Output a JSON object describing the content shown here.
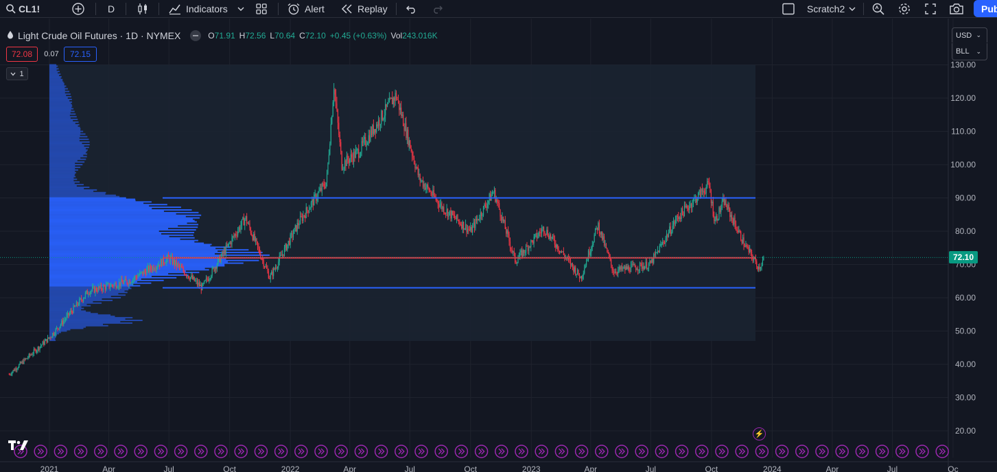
{
  "toolbar": {
    "symbol": "CL1!",
    "interval": "D",
    "indicators_label": "Indicators",
    "alert_label": "Alert",
    "replay_label": "Replay",
    "layout_name": "Scratch2",
    "publish_label": "Pub"
  },
  "legend": {
    "title": "Light Crude Oil Futures · 1D · NYMEX",
    "open_key": "O",
    "open": "71.91",
    "high_key": "H",
    "high": "72.56",
    "low_key": "L",
    "low": "70.64",
    "close_key": "C",
    "close": "72.10",
    "change": "+0.45 (+0.63%)",
    "vol_key": "Vol",
    "volume": "243.016K"
  },
  "trade": {
    "bid": "72.08",
    "spread": "0.07",
    "ask": "72.15"
  },
  "panel": {
    "collapse_count": "1"
  },
  "price_scale": {
    "currency": "USD",
    "unit": "BLL",
    "last_price": "72.10",
    "ticks": [
      "130.00",
      "120.00",
      "110.00",
      "100.00",
      "90.00",
      "80.00",
      "70.00",
      "60.00",
      "50.00",
      "40.00",
      "30.00",
      "20.00"
    ]
  },
  "time_scale": {
    "ticks": [
      "2021",
      "Apr",
      "Jul",
      "Oct",
      "2022",
      "Apr",
      "Jul",
      "Oct",
      "2023",
      "Apr",
      "Jul",
      "Oct",
      "2024",
      "Apr",
      "Jul",
      "Oc"
    ]
  },
  "colors": {
    "background": "#131722",
    "up": "#22ab94",
    "down": "#f23645",
    "volume_profile": "#2962ff",
    "value_area_line": "#2962ff",
    "poc_line": "#f23645",
    "last_price": "#089981",
    "event_marker": "#9c27b0"
  },
  "chart_data": {
    "type": "candlestick",
    "symbol": "CL1!",
    "interval": "1D",
    "ylim": [
      17,
      132
    ],
    "horizontal_lines": [
      {
        "price": 90.0,
        "color": "#2962ff"
      },
      {
        "price": 72.0,
        "color": "#f23645"
      },
      {
        "price": 63.0,
        "color": "#2962ff"
      }
    ],
    "value_area_box": {
      "top": 130.0,
      "bottom": 47.0
    },
    "close_path": [
      {
        "date": "2020-11-01",
        "close": 37
      },
      {
        "date": "2021-01-01",
        "close": 48
      },
      {
        "date": "2021-03-01",
        "close": 62
      },
      {
        "date": "2021-05-01",
        "close": 65
      },
      {
        "date": "2021-07-01",
        "close": 72
      },
      {
        "date": "2021-08-20",
        "close": 63
      },
      {
        "date": "2021-10-25",
        "close": 84
      },
      {
        "date": "2021-12-01",
        "close": 66
      },
      {
        "date": "2022-01-15",
        "close": 83
      },
      {
        "date": "2022-02-25",
        "close": 95
      },
      {
        "date": "2022-03-08",
        "close": 124
      },
      {
        "date": "2022-03-20",
        "close": 100
      },
      {
        "date": "2022-04-15",
        "close": 104
      },
      {
        "date": "2022-06-10",
        "close": 121
      },
      {
        "date": "2022-07-15",
        "close": 96
      },
      {
        "date": "2022-08-20",
        "close": 87
      },
      {
        "date": "2022-10-01",
        "close": 80
      },
      {
        "date": "2022-11-05",
        "close": 92
      },
      {
        "date": "2022-12-08",
        "close": 71
      },
      {
        "date": "2023-01-20",
        "close": 81
      },
      {
        "date": "2023-03-17",
        "close": 66
      },
      {
        "date": "2023-04-12",
        "close": 82
      },
      {
        "date": "2023-05-05",
        "close": 68
      },
      {
        "date": "2023-06-30",
        "close": 70
      },
      {
        "date": "2023-08-10",
        "close": 84
      },
      {
        "date": "2023-09-27",
        "close": 94
      },
      {
        "date": "2023-10-06",
        "close": 83
      },
      {
        "date": "2023-10-20",
        "close": 89
      },
      {
        "date": "2023-11-20",
        "close": 76
      },
      {
        "date": "2023-12-12",
        "close": 69
      },
      {
        "date": "2023-12-20",
        "close": 72.1
      }
    ]
  }
}
